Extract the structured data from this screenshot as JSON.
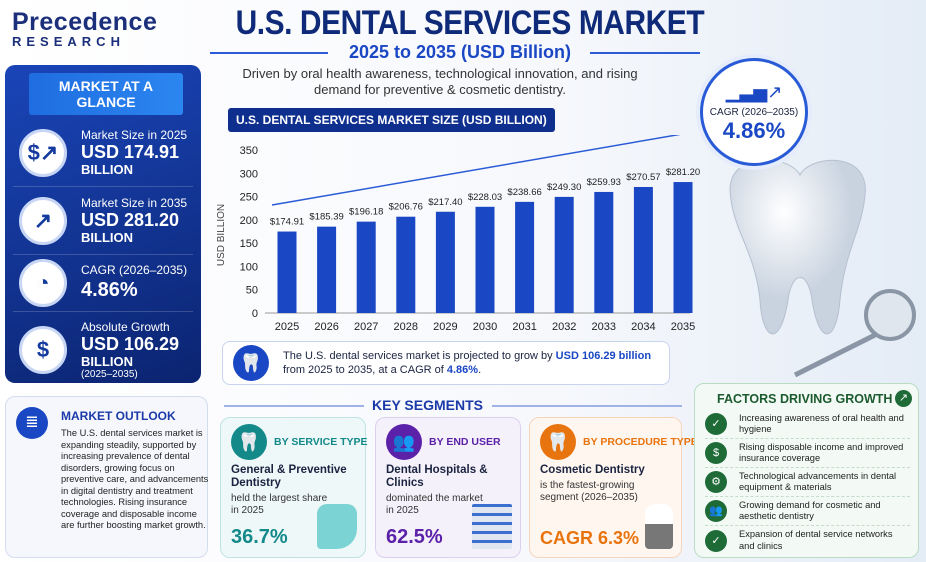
{
  "logo": {
    "line1": "Precedence",
    "line2": "RESEARCH"
  },
  "header": {
    "title": "U.S. DENTAL SERVICES MARKET",
    "subtitle": "2025 to 2035 (USD Billion)",
    "description": "Driven by oral health awareness, technological innovation, and rising demand for preventive & cosmetic dentistry."
  },
  "glance": {
    "heading": "MARKET AT A GLANCE",
    "items": [
      {
        "icon": "dollar-growth-chart-icon",
        "label": "Market Size in 2025",
        "value": "USD 174.91",
        "unit": "BILLION",
        "sub": ""
      },
      {
        "icon": "growth-chart-icon",
        "label": "Market Size in 2035",
        "value": "USD 281.20",
        "unit": "BILLION",
        "sub": ""
      },
      {
        "icon": "pie-chart-icon",
        "label": "CAGR (2026–2035)",
        "value": "4.86%",
        "unit": "",
        "sub": ""
      },
      {
        "icon": "dollar-icon",
        "label": "Absolute Growth",
        "value": "USD 106.29",
        "unit": "BILLION",
        "sub": "(2025–2035)"
      }
    ]
  },
  "cagr_badge": {
    "label": "CAGR (2026–2035)",
    "value": "4.86%"
  },
  "chart_data": {
    "type": "bar",
    "title": "U.S. DENTAL SERVICES MARKET SIZE (USD BILLION)",
    "xlabel": "",
    "ylabel": "USD BILLION",
    "ylim": [
      0,
      350
    ],
    "yticks": [
      0,
      50,
      100,
      150,
      200,
      250,
      300,
      350
    ],
    "grid": false,
    "categories": [
      "2025",
      "2026",
      "2027",
      "2028",
      "2029",
      "2030",
      "2031",
      "2032",
      "2033",
      "2034",
      "2035"
    ],
    "values": [
      174.91,
      185.39,
      196.18,
      206.76,
      217.4,
      228.03,
      238.66,
      249.3,
      259.93,
      270.57,
      281.2
    ],
    "data_labels": [
      "$174.91",
      "$185.39",
      "$196.18",
      "$206.76",
      "$217.40",
      "$228.03",
      "$238.66",
      "$249.30",
      "$259.93",
      "$270.57",
      "$281.20"
    ],
    "bar_color": "#1a47c4"
  },
  "note": {
    "pre": "The U.S. dental services market is projected to grow by ",
    "highlight1": "USD 106.29 billion",
    "mid": " from 2025 to 2035, at a CAGR of ",
    "highlight2": "4.86%",
    "post": "."
  },
  "outlook": {
    "heading": "MARKET OUTLOOK",
    "text": "The U.S. dental services market is expanding steadily, supported by increasing prevalence of dental disorders, growing focus on preventive care, and advancements in digital dentistry and treatment technologies. Rising insurance coverage and disposable income are further boosting market growth."
  },
  "segments": {
    "heading": "KEY SEGMENTS",
    "items": [
      {
        "heading": "BY SERVICE TYPE",
        "name": "General & Preventive Dentistry",
        "desc": "held the largest share in 2025",
        "value": "36.7%",
        "color": "#13898a"
      },
      {
        "heading": "BY END USER",
        "name": "Dental Hospitals & Clinics",
        "desc": "dominated the market in 2025",
        "value": "62.5%",
        "color": "#5b21a8"
      },
      {
        "heading": "BY PROCEDURE TYPE",
        "name": "Cosmetic Dentistry",
        "desc": "is the fastest-growing segment (2026–2035)",
        "value": "CAGR 6.3%",
        "color": "#e8740f"
      }
    ]
  },
  "factors": {
    "heading": "FACTORS DRIVING GROWTH",
    "items": [
      {
        "icon": "tooth-check-icon",
        "text": "Increasing awareness of oral health and hygiene"
      },
      {
        "icon": "dollar-icon",
        "text": "Rising disposable income and improved insurance coverage"
      },
      {
        "icon": "gear-icon",
        "text": "Technological advancements in dental equipment & materials"
      },
      {
        "icon": "people-icon",
        "text": "Growing demand for cosmetic and aesthetic dentistry"
      },
      {
        "icon": "shield-check-icon",
        "text": "Expansion of dental service networks and clinics"
      }
    ]
  }
}
